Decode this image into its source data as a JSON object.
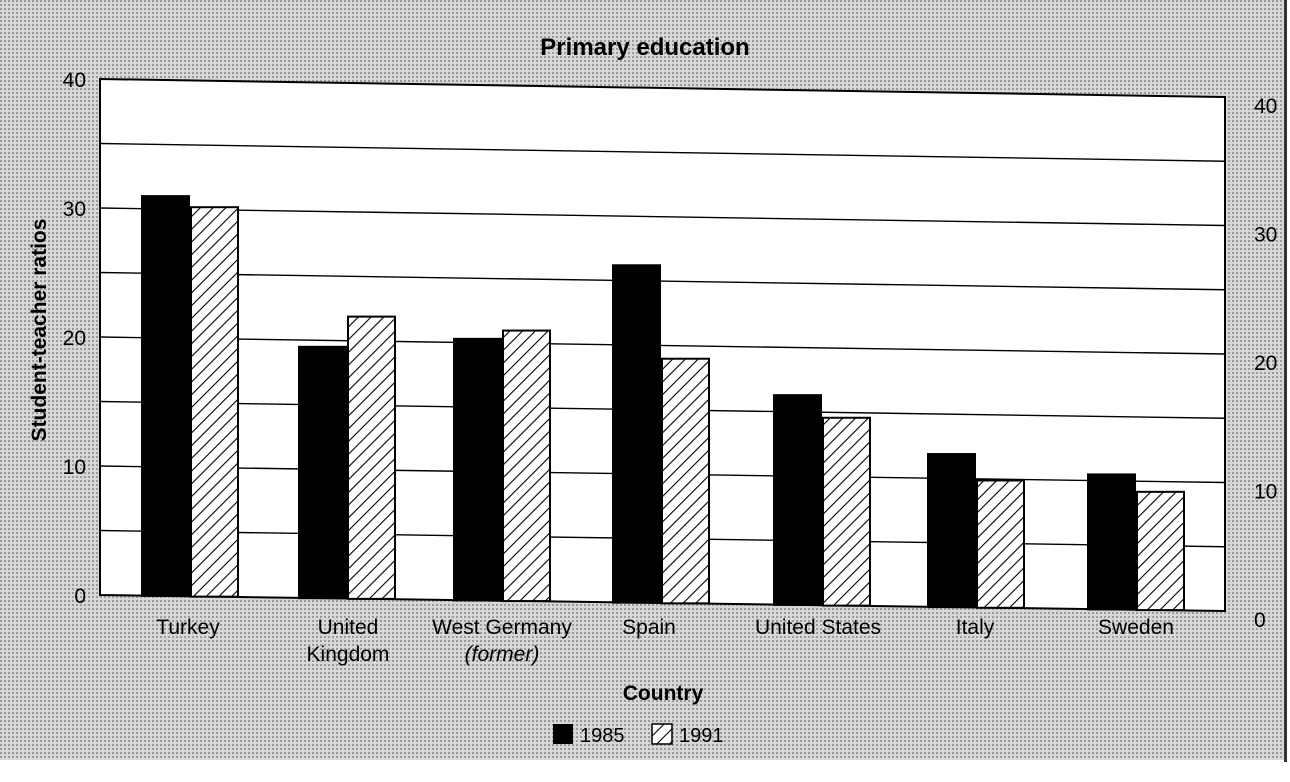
{
  "chart_data": {
    "type": "bar",
    "title": "Primary education",
    "xlabel": "Country",
    "ylabel": "Student-teacher ratios",
    "ylim": [
      0,
      40
    ],
    "y_ticks": [
      "0",
      "10",
      "20",
      "30",
      "40"
    ],
    "categories": [
      [
        "Turkey"
      ],
      [
        "United",
        "Kingdom"
      ],
      [
        "West Germany",
        "(former)"
      ],
      [
        "Spain"
      ],
      [
        "United States"
      ],
      [
        "Italy"
      ],
      [
        "Sweden"
      ]
    ],
    "series": [
      {
        "name": "1985",
        "fill": "solid",
        "values": [
          31,
          19.5,
          20.3,
          26.2,
          16.3,
          11.9,
          10.5
        ]
      },
      {
        "name": "1991",
        "fill": "hatched",
        "values": [
          30.2,
          21.9,
          21,
          19,
          14.6,
          9.9,
          9.2
        ]
      }
    ],
    "legend_position": "bottom-center",
    "grid": true,
    "background": "dotted-gray",
    "colors": {
      "bar_solid": "#000000",
      "hatch": "#000000",
      "plot_bg": "#ffffff",
      "frame_bg": "#c8c8c8"
    }
  }
}
